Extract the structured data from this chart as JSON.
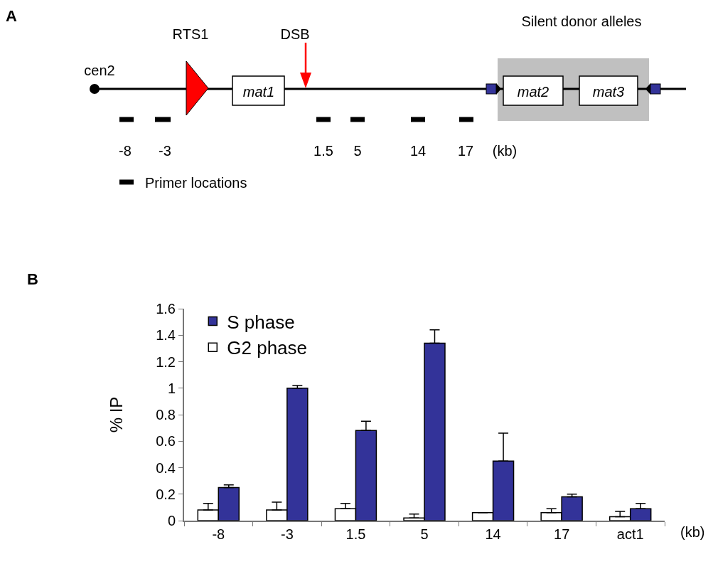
{
  "chart_data": [
    {
      "type": "other",
      "annotations": [
        "A",
        "RTS1",
        "DSB",
        "cen2",
        "mat1",
        "mat2",
        "mat3",
        "Silent donor alleles",
        "-8",
        "-3",
        "1.5",
        "5",
        "14",
        "17",
        "(kb)",
        "Primer locations"
      ]
    },
    {
      "type": "bar",
      "ylabel": "% IP",
      "annotations": [
        "B",
        "(kb)"
      ],
      "categories": [
        "-8",
        "-3",
        "1.5",
        "5",
        "14",
        "17",
        "act1"
      ],
      "series": [
        {
          "name": "G2 phase",
          "color": "#ffffff",
          "values": [
            0.08,
            0.08,
            0.09,
            0.02,
            0.06,
            0.06,
            0.03
          ],
          "errors": [
            [
              0.08,
              0.13
            ],
            [
              0.08,
              0.14
            ],
            [
              0.09,
              0.13
            ],
            [
              0.02,
              0.05
            ],
            null,
            [
              0.06,
              0.09
            ],
            [
              0.03,
              0.07
            ]
          ]
        },
        {
          "name": "S phase",
          "color": "#333399",
          "values": [
            0.25,
            1.0,
            0.68,
            1.34,
            0.45,
            0.18,
            0.09
          ],
          "errors": [
            [
              0.25,
              0.27
            ],
            [
              1.0,
              1.02
            ],
            [
              0.68,
              0.75
            ],
            [
              1.34,
              1.44
            ],
            [
              0.45,
              0.66
            ],
            [
              0.18,
              0.2
            ],
            [
              0.09,
              0.13
            ]
          ]
        }
      ],
      "ylim": [
        0,
        1.6
      ],
      "yticks": [
        0,
        0.2,
        0.4,
        0.6,
        0.8,
        1,
        1.2,
        1.4,
        1.6
      ],
      "grid": false,
      "legend": "top left"
    }
  ]
}
